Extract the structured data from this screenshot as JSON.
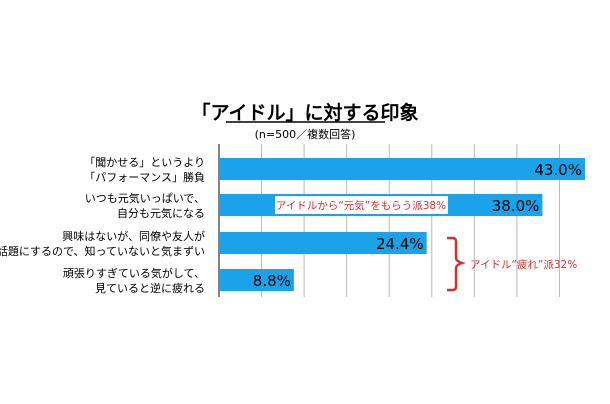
{
  "chart_data": {
    "type": "bar",
    "orientation": "horizontal",
    "title": "「アイドル」に対する印象",
    "subtitle": "(n=500／複数回答)",
    "categories": [
      [
        "「聞かせる」というより",
        "「パフォーマンス」勝負"
      ],
      [
        "いつも元気いっぱいで、",
        "自分も元気になる"
      ],
      [
        "興味はないが、同僚や友人が",
        "話題にするので、知っていないと気まずい"
      ],
      [
        "頑張りすぎている気がして、",
        "見ていると逆に疲れる"
      ]
    ],
    "values": [
      43.0,
      38.0,
      24.4,
      8.8
    ],
    "value_labels": [
      "43.0%",
      "38.0%",
      "24.4%",
      "8.8%"
    ],
    "xlim": [
      0,
      45
    ],
    "grid": true,
    "annotations": [
      {
        "text": "アイドルから“元気”をもらう派38%",
        "color": "#e02b2b"
      },
      {
        "text": "アイドル“疲れ”派32%",
        "color": "#e02b2b"
      }
    ],
    "colors": {
      "bar": "#1aa3e8",
      "annotation": "#e02b2b",
      "grid": "#b9b9b9",
      "text": "#000000"
    }
  }
}
